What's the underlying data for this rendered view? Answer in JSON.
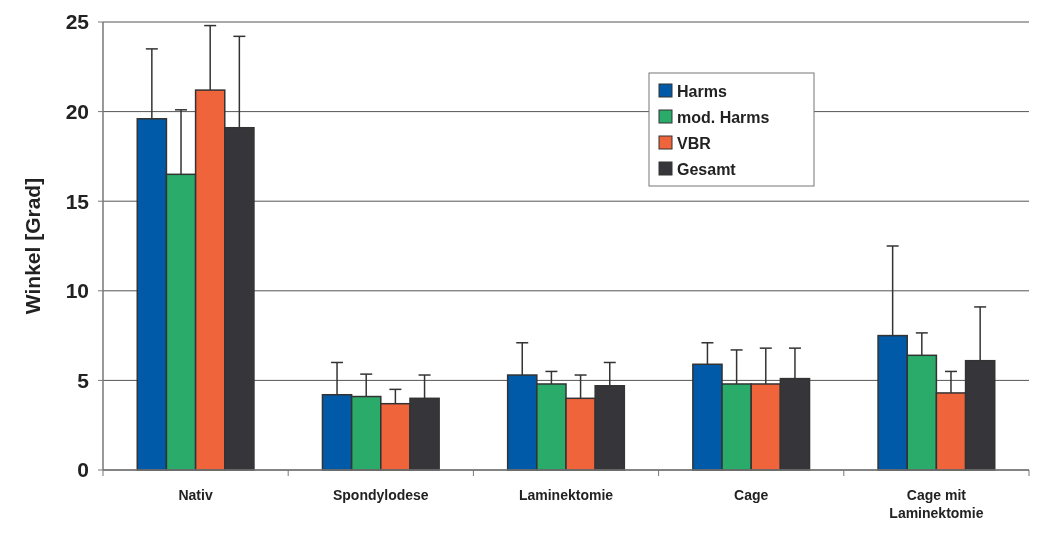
{
  "chart_data": {
    "type": "bar",
    "ylabel": "Winkel [Grad]",
    "categories": [
      "Nativ",
      "Spondylodese",
      "Laminektomie",
      "Cage",
      "Cage mit Laminektomie"
    ],
    "series": [
      {
        "name": "Harms",
        "color": "#005aa8",
        "values": [
          19.6,
          4.2,
          5.3,
          5.9,
          7.5
        ],
        "errors": [
          [
            19.6,
            23.5
          ],
          [
            4.2,
            6.0
          ],
          [
            5.3,
            7.1
          ],
          [
            5.9,
            7.1
          ],
          [
            7.5,
            12.5
          ]
        ]
      },
      {
        "name": "mod. Harms",
        "color": "#2aab6a",
        "values": [
          16.5,
          4.1,
          4.8,
          4.8,
          6.4
        ],
        "errors": [
          [
            16.5,
            20.1
          ],
          [
            4.1,
            5.35
          ],
          [
            4.8,
            5.5
          ],
          [
            4.8,
            6.7
          ],
          [
            6.4,
            7.65
          ]
        ]
      },
      {
        "name": "VBR",
        "color": "#f0643c",
        "values": [
          21.2,
          3.7,
          4.0,
          4.8,
          4.3
        ],
        "errors": [
          [
            21.2,
            24.8
          ],
          [
            3.7,
            4.5
          ],
          [
            4.0,
            5.3
          ],
          [
            4.8,
            6.8
          ],
          [
            4.3,
            5.5
          ]
        ]
      },
      {
        "name": "Gesamt",
        "color": "#36363a",
        "values": [
          19.1,
          4.0,
          4.7,
          5.1,
          6.1
        ],
        "errors": [
          [
            19.1,
            24.2
          ],
          [
            4.0,
            5.3
          ],
          [
            4.7,
            6.0
          ],
          [
            5.1,
            6.8
          ],
          [
            6.1,
            9.1
          ]
        ]
      }
    ],
    "ylim": [
      0,
      25
    ],
    "yticks": [
      0,
      5,
      10,
      15,
      20,
      25
    ],
    "grid": "y",
    "legend": "top right"
  }
}
